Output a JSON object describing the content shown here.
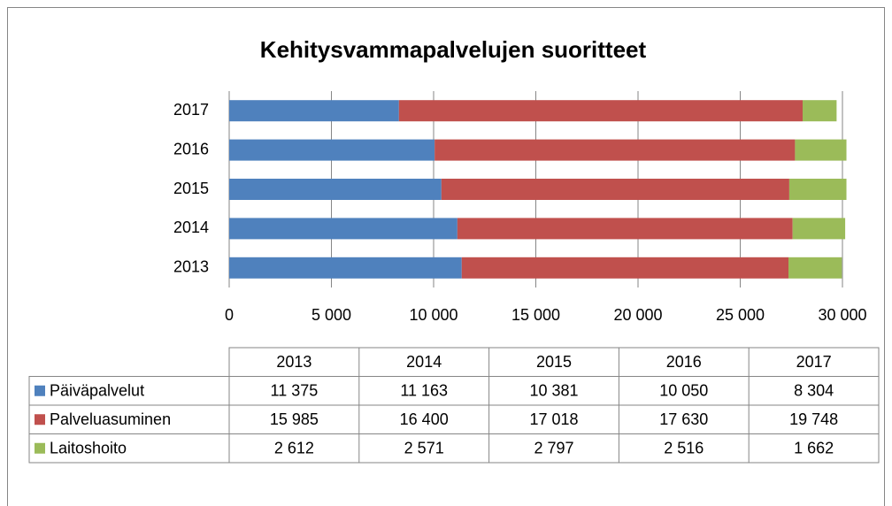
{
  "chart_data": {
    "type": "stacked_barh",
    "title": "Kehitysvammapalvelujen suoritteet",
    "categories": [
      "2013",
      "2014",
      "2015",
      "2016",
      "2017"
    ],
    "series": [
      {
        "name": "Päiväpalvelut",
        "color": "#4f81bd",
        "values": [
          11375,
          11163,
          10381,
          10050,
          8304
        ],
        "value_labels": [
          "11 375",
          "11 163",
          "10 381",
          "10 050",
          "8 304"
        ]
      },
      {
        "name": "Palveluasuminen",
        "color": "#c0504d",
        "values": [
          15985,
          16400,
          17018,
          17630,
          19748
        ],
        "value_labels": [
          "15 985",
          "16 400",
          "17 018",
          "17 630",
          "19 748"
        ]
      },
      {
        "name": "Laitoshoito",
        "color": "#9bbb59",
        "values": [
          2612,
          2571,
          2797,
          2516,
          1662
        ],
        "value_labels": [
          "2 612",
          "2 571",
          "2 797",
          "2 516",
          "1 662"
        ]
      }
    ],
    "xlim": [
      0,
      30000
    ],
    "xticks": [
      0,
      {
        "value": 5000,
        "label": "5 000"
      },
      {
        "value": 10000,
        "label": "10 000"
      },
      {
        "value": 15000,
        "label": "15 000"
      },
      {
        "value": 20000,
        "label": "20 000"
      },
      {
        "value": 25000,
        "label": "25 000"
      },
      {
        "value": 30000,
        "label": "30 000"
      }
    ],
    "grid": true,
    "legend": "table"
  }
}
